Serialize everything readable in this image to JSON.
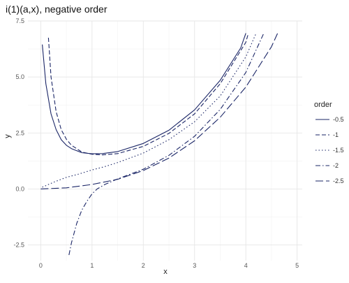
{
  "chart_data": {
    "type": "line",
    "title": "i(1)(a,x), negative order",
    "xlabel": "x",
    "ylabel": "y",
    "xlim": [
      -0.25,
      5.1
    ],
    "ylim": [
      -3.2,
      7.5
    ],
    "x_ticks": [
      0,
      1,
      2,
      3,
      4,
      5
    ],
    "x_tick_labels": [
      "0",
      "1",
      "2",
      "3",
      "4",
      "5"
    ],
    "y_ticks": [
      -2.5,
      0,
      2.5,
      5,
      7.5
    ],
    "y_tick_labels": [
      "-2.5",
      "0.0",
      "2.5",
      "5.0",
      "7.5"
    ],
    "grid": true,
    "legend": {
      "title": "order",
      "placement": "right"
    },
    "line_color": "#1a2566",
    "series": [
      {
        "name": "-0.5",
        "dash": "solid",
        "x": [
          0.03,
          0.1,
          0.2,
          0.3,
          0.4,
          0.5,
          0.6,
          0.8,
          1.0,
          1.2,
          1.5,
          2.0,
          2.5,
          3.0,
          3.5,
          3.9,
          4.0
        ],
        "y": [
          6.45,
          4.7,
          3.35,
          2.65,
          2.2,
          1.95,
          1.8,
          1.62,
          1.57,
          1.58,
          1.67,
          2.03,
          2.62,
          3.53,
          4.85,
          6.3,
          6.95
        ]
      },
      {
        "name": "-1",
        "dash": "dashed",
        "x": [
          0.15,
          0.2,
          0.3,
          0.4,
          0.5,
          0.6,
          0.8,
          1.0,
          1.2,
          1.5,
          2.0,
          2.5,
          3.0,
          3.5,
          4.0,
          4.05
        ],
        "y": [
          6.75,
          5.0,
          3.45,
          2.65,
          2.22,
          1.95,
          1.65,
          1.55,
          1.52,
          1.58,
          1.9,
          2.48,
          3.35,
          4.7,
          6.55,
          6.95
        ]
      },
      {
        "name": "-1.5",
        "dash": "dotted",
        "x": [
          0.03,
          0.25,
          0.5,
          0.75,
          1.0,
          1.25,
          1.5,
          2.0,
          2.5,
          3.0,
          3.5,
          4.0,
          4.2
        ],
        "y": [
          0.08,
          0.3,
          0.52,
          0.67,
          0.85,
          1.0,
          1.18,
          1.6,
          2.2,
          3.0,
          4.15,
          5.9,
          6.95
        ]
      },
      {
        "name": "-2",
        "dash": "dashdot",
        "x": [
          0.55,
          0.6,
          0.7,
          0.8,
          0.9,
          1.0,
          1.1,
          1.25,
          1.5,
          2.0,
          2.5,
          3.0,
          3.5,
          4.0,
          4.35
        ],
        "y": [
          -2.95,
          -2.4,
          -1.55,
          -0.95,
          -0.55,
          -0.22,
          0.0,
          0.2,
          0.45,
          0.88,
          1.5,
          2.35,
          3.55,
          5.2,
          6.95
        ]
      },
      {
        "name": "-2.5",
        "dash": "longdash",
        "x": [
          0.0,
          0.5,
          1.0,
          1.5,
          2.0,
          2.5,
          3.0,
          3.5,
          4.0,
          4.5,
          4.62
        ],
        "y": [
          0.0,
          0.05,
          0.2,
          0.43,
          0.82,
          1.38,
          2.15,
          3.2,
          4.55,
          6.35,
          6.95
        ]
      }
    ]
  }
}
